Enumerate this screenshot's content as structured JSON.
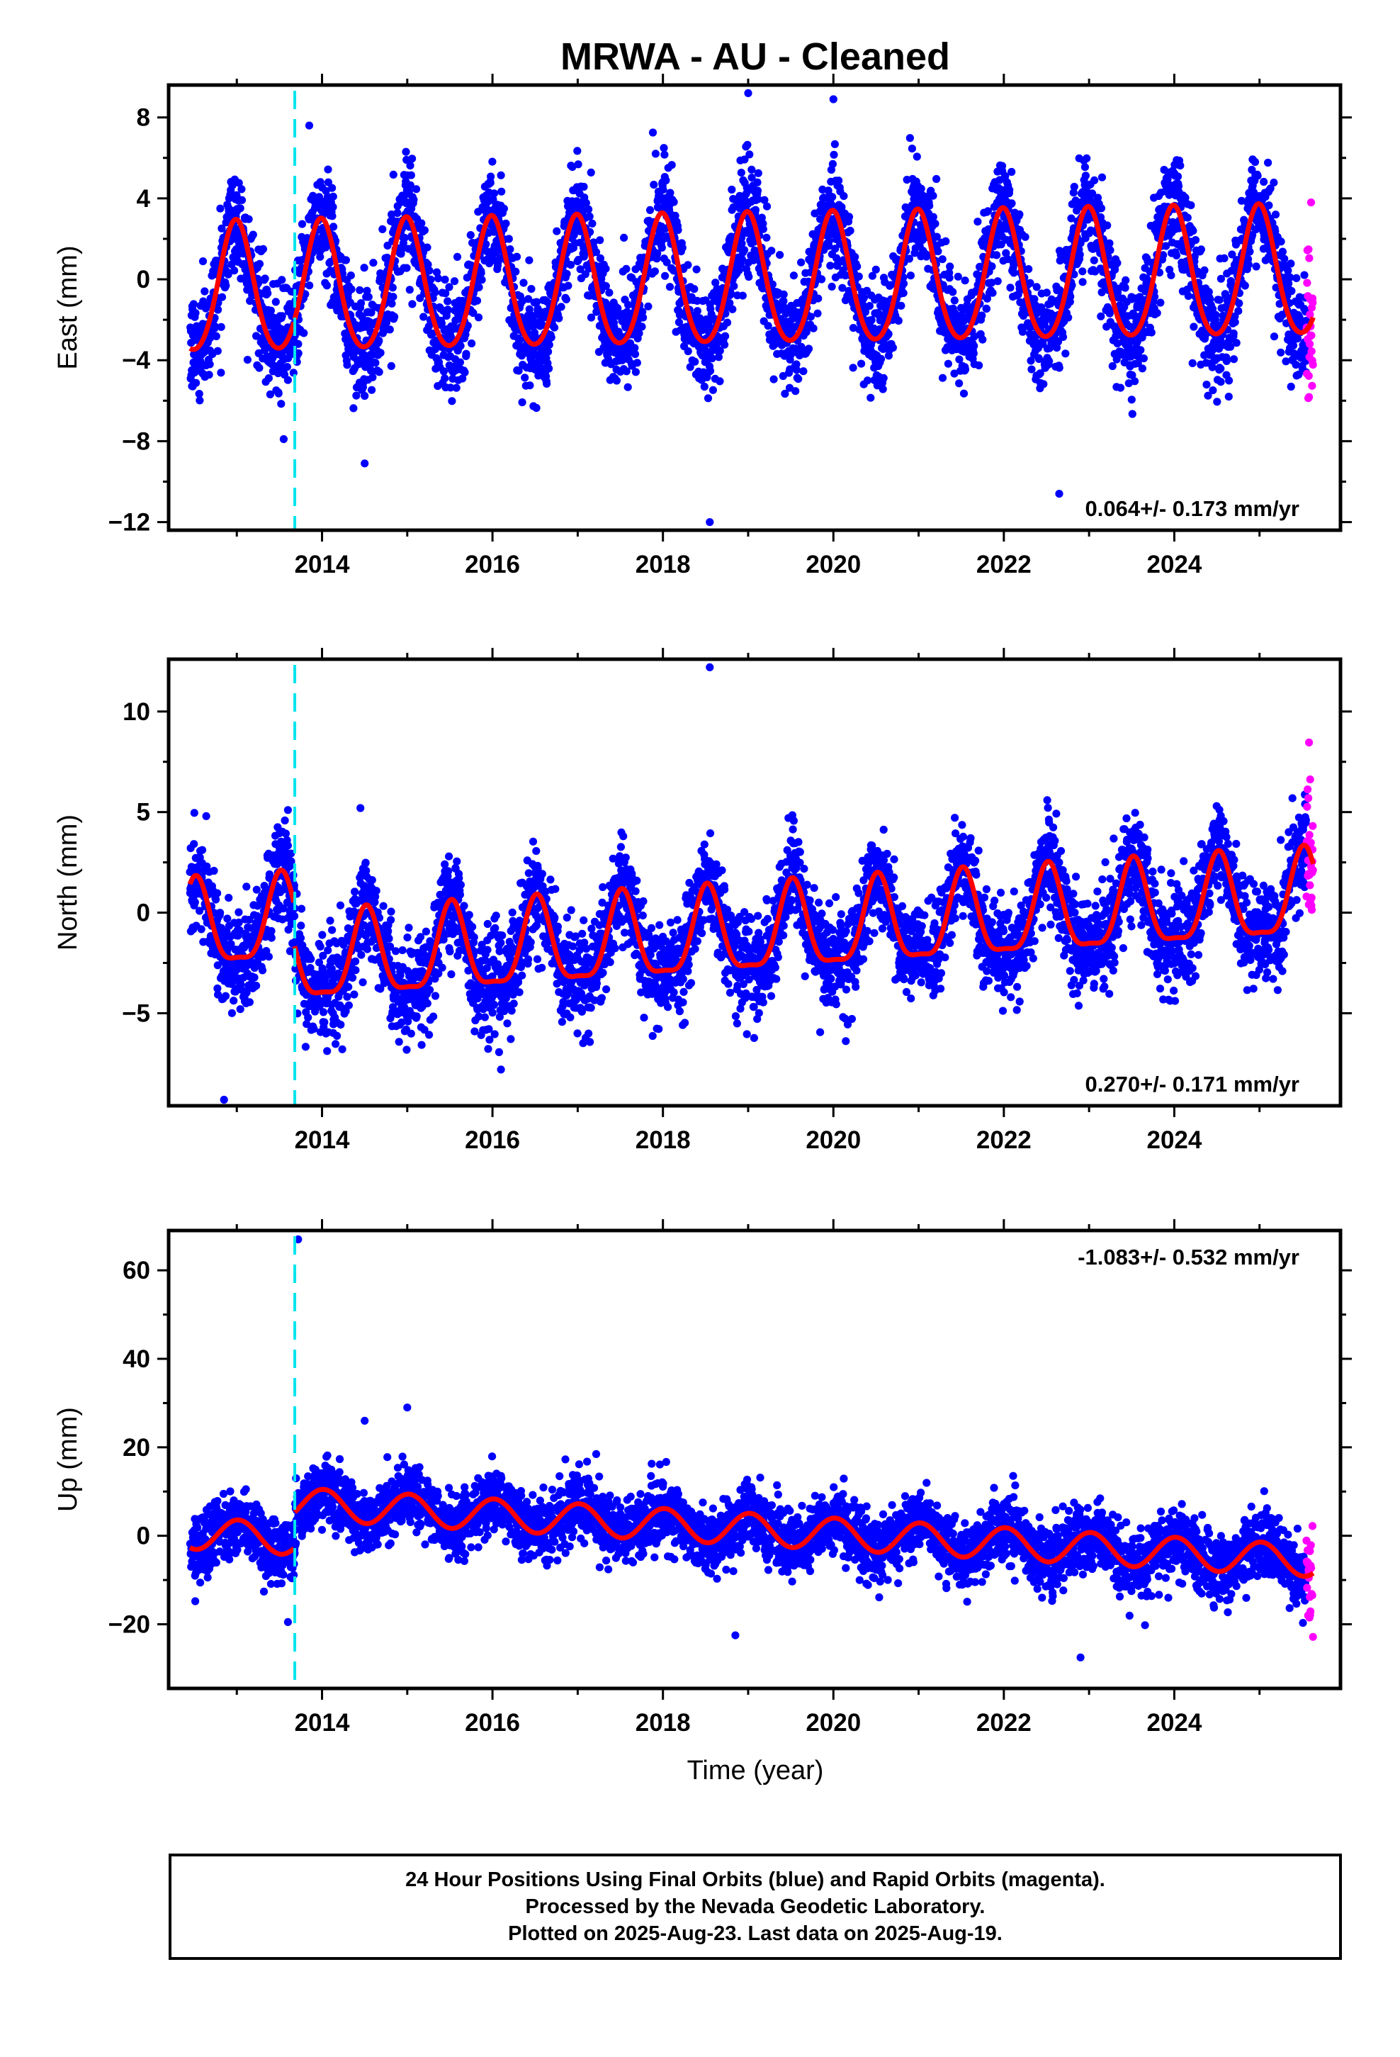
{
  "chart_data": {
    "type": "scatter",
    "title": "MRWA  - AU - Cleaned",
    "xlabel": "Time (year)",
    "xlim": [
      2012.2,
      2025.95
    ],
    "xticks": [
      2014,
      2016,
      2018,
      2020,
      2022,
      2024
    ],
    "data_start": 2012.45,
    "data_end": 2025.63,
    "rapid_start": 2025.55,
    "offset_epoch": 2013.68,
    "colors": {
      "final": "#0000ff",
      "rapid": "#ff00ff",
      "model": "#ff0000",
      "offset": "#00e5ee"
    },
    "panels": [
      {
        "name": "east",
        "ylabel": "East (mm)",
        "ylim": [
          -12.4,
          9.6
        ],
        "yticks": [
          8,
          4,
          0,
          -4,
          -8,
          -12
        ],
        "rate_text": "0.064+/- 0.173 mm/yr",
        "rate_position": "bottom-right",
        "model": {
          "amplitude": 3.2,
          "semiannual": 0.35,
          "phase_year": 2012.99,
          "trend": 0.064,
          "mean": -0.2,
          "offset_jump": 0.0
        },
        "scatter_sd": 1.3,
        "outliers": [
          [
            2019.0,
            9.2
          ],
          [
            2020.0,
            8.9
          ],
          [
            2013.85,
            7.6
          ],
          [
            2018.55,
            -12.0
          ],
          [
            2022.65,
            -10.6
          ],
          [
            2014.5,
            -9.1
          ],
          [
            2013.55,
            -7.9
          ]
        ]
      },
      {
        "name": "north",
        "ylabel": "North (mm)",
        "ylim": [
          -9.6,
          12.6
        ],
        "yticks": [
          10,
          5,
          0,
          -5
        ],
        "rate_text": "0.270+/- 0.171 mm/yr",
        "rate_position": "bottom-right",
        "model": {
          "amplitude": 2.1,
          "semiannual": 0.6,
          "phase_year": 2012.52,
          "trend": 0.27,
          "mean": -1.1,
          "offset_jump": -2.0
        },
        "scatter_sd": 1.2,
        "outliers": [
          [
            2018.55,
            12.2
          ],
          [
            2012.85,
            -9.3
          ],
          [
            2016.1,
            -7.8
          ],
          [
            2013.6,
            5.1
          ],
          [
            2014.45,
            5.2
          ]
        ]
      },
      {
        "name": "up",
        "ylabel": "Up (mm)",
        "ylim": [
          -34.5,
          69.0
        ],
        "yticks": [
          60,
          40,
          20,
          0,
          -20
        ],
        "rate_text": "-1.083+/- 0.532 mm/yr",
        "rate_position": "top-right",
        "model": {
          "amplitude": 3.6,
          "semiannual": 0.0,
          "phase_year": 2013.02,
          "trend": -1.083,
          "mean": 1.5,
          "offset_jump": 8.0
        },
        "scatter_sd": 3.6,
        "outliers": [
          [
            2013.72,
            67.0
          ],
          [
            2015.0,
            29.0
          ],
          [
            2014.5,
            26.0
          ],
          [
            2022.9,
            -27.5
          ],
          [
            2018.85,
            -22.5
          ],
          [
            2013.6,
            -19.5
          ]
        ]
      }
    ]
  },
  "footer": {
    "line1": "24 Hour Positions Using Final Orbits (blue) and Rapid Orbits (magenta).",
    "line2": "Processed by the Nevada Geodetic Laboratory.",
    "line3": "Plotted on 2025-Aug-23. Last data on 2025-Aug-19."
  }
}
